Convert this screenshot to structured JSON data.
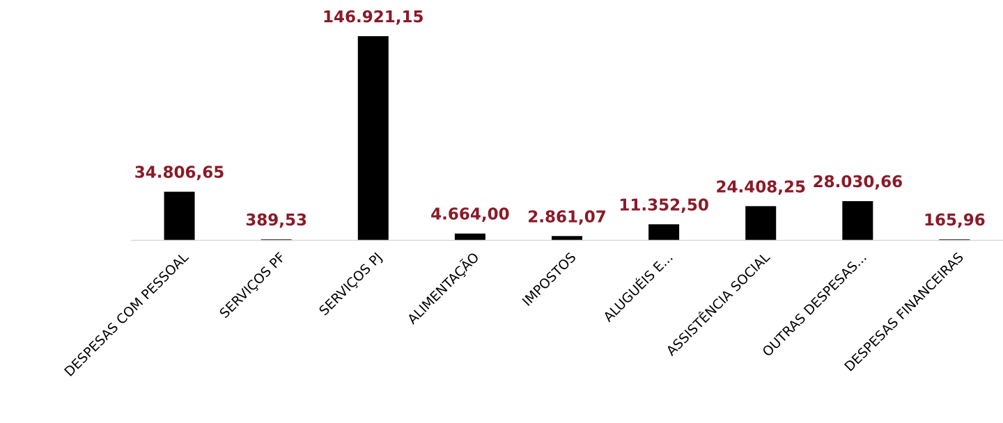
{
  "chart_data": {
    "type": "bar",
    "categories": [
      "DESPESAS COM PESSOAL",
      "SERVIÇOS PF",
      "SERVIÇOS PJ",
      "ALIMENTAÇÃO",
      "IMPOSTOS",
      "ALUGUÉIS E...",
      "ASSISTÊNCIA SOCIAL",
      "OUTRAS DESPESAS...",
      "DESPESAS FINANCEIRAS"
    ],
    "values": [
      34806.65,
      389.53,
      146921.15,
      4664.0,
      2861.07,
      11352.5,
      24408.25,
      28030.66,
      165.96
    ],
    "data_labels": [
      "34.806,65",
      "389,53",
      "146.921,15",
      "4.664,00",
      "2.861,07",
      "11.352,50",
      "24.408,25",
      "28.030,66",
      "165,96"
    ],
    "title": "",
    "xlabel": "",
    "ylabel": "",
    "ylim": [
      0,
      150000
    ],
    "grid": false,
    "legend": "none",
    "colors": {
      "bar": "#000000",
      "data_label": "#8B1A28",
      "axis": "#D9D9D9",
      "category_label": "#000000"
    }
  }
}
